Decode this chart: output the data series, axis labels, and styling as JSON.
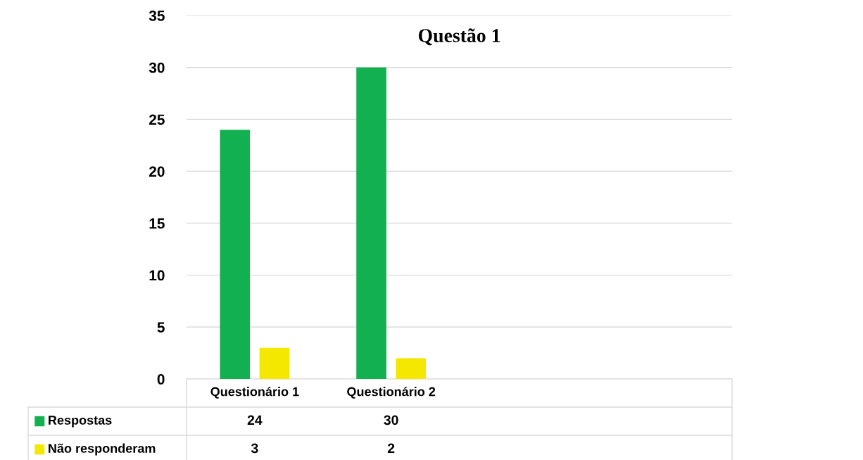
{
  "chart_data": {
    "type": "bar",
    "title": "Questão 1",
    "categories": [
      "Questionário 1",
      "Questionário 2",
      null,
      null
    ],
    "series": [
      {
        "name": "Respostas",
        "color": "#12b050",
        "values": [
          24,
          30,
          null,
          null
        ]
      },
      {
        "name": "Não responderam",
        "color": "#f5e800",
        "values": [
          3,
          2,
          null,
          null
        ]
      }
    ],
    "ylim": [
      0,
      35
    ],
    "yticks": [
      0,
      5,
      10,
      15,
      20,
      25,
      30,
      35
    ],
    "grid": "y",
    "data_labels": true,
    "legend": "bottom left"
  }
}
